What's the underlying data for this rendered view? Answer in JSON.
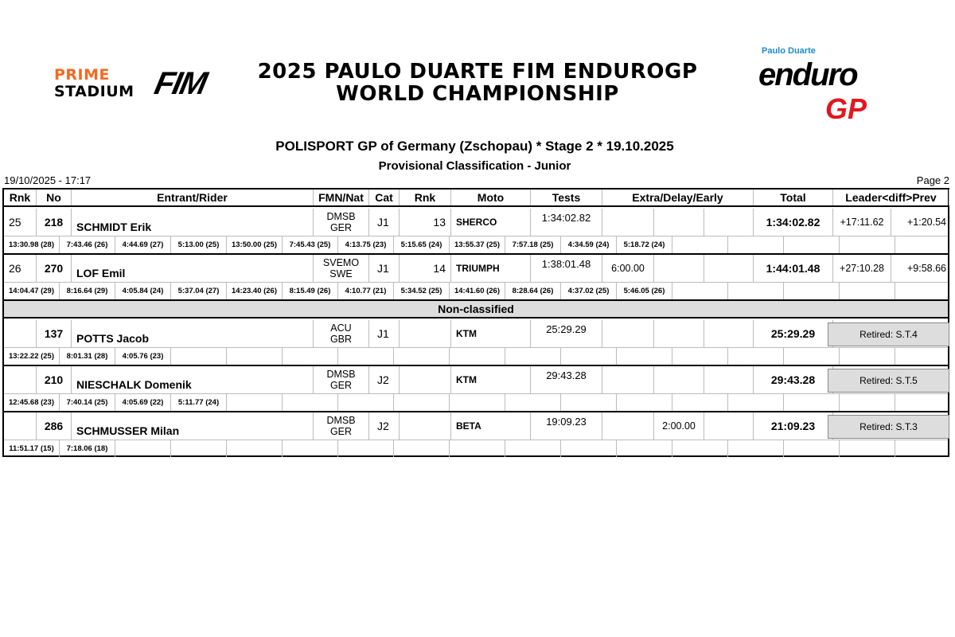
{
  "header": {
    "logo_left": "PRIME STADIUM",
    "logo_left_1": "PRIME",
    "logo_left_2": "STADIUM",
    "logo_fim": "FIM",
    "title_1": "2025 PAULO DUARTE FIM ENDUROGP",
    "title_2": "WORLD CHAMPIONSHIP",
    "logo_right": "Paulo Duarte enduro GP",
    "logo_right_brand": "Paulo Duarte",
    "logo_right_1": "enduro",
    "logo_right_2": "GP",
    "event": "POLISPORT GP of Germany (Zschopau) * Stage 2 * 19.10.2025",
    "subtitle": "Provisional Classification - Junior",
    "timestamp": "19/10/2025 - 17:17",
    "page": "Page 2",
    "brand_orange": "#f26a21",
    "brand_red": "#e4161d"
  },
  "columns": [
    "Rnk",
    "No",
    "Entrant/Rider",
    "FMN/Nat",
    "Cat",
    "Rnk",
    "Moto",
    "Tests",
    "Extra/Delay/Early",
    "Total",
    "Leader<diff>Prev"
  ],
  "classified": [
    {
      "rnk": "25",
      "no": "218",
      "name": "SCHMIDT Erik",
      "fmn": "DMSB",
      "nat": "GER",
      "cat": "J1",
      "cat_rnk": "13",
      "moto": "SHERCO",
      "tests": "1:34:02.82",
      "extra": [
        "",
        "",
        ""
      ],
      "total": "1:34:02.82",
      "leader": "+17:11.62",
      "prev": "+1:20.54",
      "stages": [
        "13:30.98 (28)",
        "7:43.46 (26)",
        "4:44.69 (27)",
        "5:13.00 (25)",
        "13:50.00 (25)",
        "7:45.43 (25)",
        "4:13.75 (23)",
        "5:15.65 (24)",
        "13:55.37 (25)",
        "7:57.18 (25)",
        "4:34.59 (24)",
        "5:18.72 (24)"
      ]
    },
    {
      "rnk": "26",
      "no": "270",
      "name": "LOF Emil",
      "fmn": "SVEMO",
      "nat": "SWE",
      "cat": "J1",
      "cat_rnk": "14",
      "moto": "TRIUMPH",
      "tests": "1:38:01.48",
      "extra": [
        "6:00.00",
        "",
        ""
      ],
      "total": "1:44:01.48",
      "leader": "+27:10.28",
      "prev": "+9:58.66",
      "stages": [
        "14:04.47 (29)",
        "8:16.64 (29)",
        "4:05.84 (24)",
        "5:37.04 (27)",
        "14:23.40 (26)",
        "8:15.49 (26)",
        "4:10.77 (21)",
        "5:34.52 (25)",
        "14:41.60 (26)",
        "8:28.64 (26)",
        "4:37.02 (25)",
        "5:46.05 (26)"
      ]
    }
  ],
  "non_classified_label": "Non-classified",
  "non_classified": [
    {
      "rnk": "",
      "no": "137",
      "name": "POTTS Jacob",
      "fmn": "ACU",
      "nat": "GBR",
      "cat": "J1",
      "cat_rnk": "",
      "moto": "KTM",
      "tests": "25:29.29",
      "extra": [
        "",
        "",
        ""
      ],
      "total": "25:29.29",
      "status": "Retired: S.T.4",
      "stages": [
        "13:22.22 (25)",
        "8:01.31 (28)",
        "4:05.76 (23)"
      ]
    },
    {
      "rnk": "",
      "no": "210",
      "name": "NIESCHALK Domenik",
      "fmn": "DMSB",
      "nat": "GER",
      "cat": "J2",
      "cat_rnk": "",
      "moto": "KTM",
      "tests": "29:43.28",
      "extra": [
        "",
        "",
        ""
      ],
      "total": "29:43.28",
      "status": "Retired: S.T.5",
      "stages": [
        "12:45.68 (23)",
        "7:40.14 (25)",
        "4:05.69 (22)",
        "5:11.77 (24)"
      ]
    },
    {
      "rnk": "",
      "no": "286",
      "name": "SCHMUSSER Milan",
      "fmn": "DMSB",
      "nat": "GER",
      "cat": "J2",
      "cat_rnk": "",
      "moto": "BETA",
      "tests": "19:09.23",
      "extra": [
        "",
        "2:00.00",
        ""
      ],
      "total": "21:09.23",
      "status": "Retired: S.T.3",
      "stages": [
        "11:51.17 (15)",
        "7:18.06 (18)"
      ]
    }
  ]
}
